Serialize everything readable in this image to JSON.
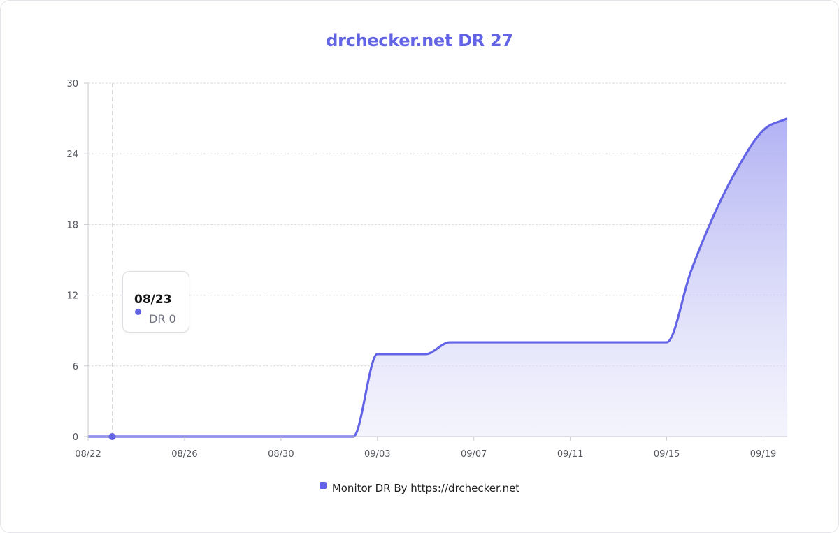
{
  "title": "drchecker.net DR 27",
  "colors": {
    "accent": "#6363e6",
    "fill_top": "#b3b3f3",
    "grid": "#dadade"
  },
  "tooltip": {
    "date": "08/23",
    "value": "DR 0"
  },
  "legend": {
    "label": "Monitor DR By https://drchecker.net"
  },
  "chart_data": {
    "type": "area",
    "title": "drchecker.net DR 27",
    "xlabel": "",
    "ylabel": "",
    "ylim": [
      0,
      30
    ],
    "yticks": [
      0,
      6,
      12,
      18,
      24,
      30
    ],
    "x_tick_labels": [
      "08/22",
      "08/26",
      "08/30",
      "09/03",
      "09/07",
      "09/11",
      "09/15",
      "09/19"
    ],
    "series": [
      {
        "name": "Monitor DR By https://drchecker.net",
        "points": [
          {
            "x": "08/22",
            "y": 0
          },
          {
            "x": "08/23",
            "y": 0
          },
          {
            "x": "09/02",
            "y": 0
          },
          {
            "x": "09/03",
            "y": 7
          },
          {
            "x": "09/04",
            "y": 7
          },
          {
            "x": "09/05",
            "y": 7
          },
          {
            "x": "09/06",
            "y": 8
          },
          {
            "x": "09/15",
            "y": 8
          },
          {
            "x": "09/16",
            "y": 14
          },
          {
            "x": "09/17",
            "y": 19
          },
          {
            "x": "09/18",
            "y": 23
          },
          {
            "x": "09/19",
            "y": 26
          },
          {
            "x": "09/20",
            "y": 27
          }
        ]
      }
    ],
    "highlighted_point": {
      "x": "08/23",
      "y": 0
    },
    "grid": true,
    "legend_position": "bottom"
  }
}
